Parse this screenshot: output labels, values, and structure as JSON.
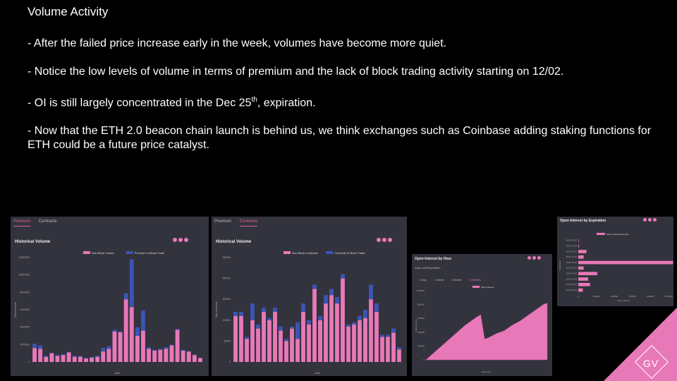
{
  "slide": {
    "title": "Volume Activity",
    "bullets": [
      "- After the failed price increase early in the week, volumes have become more quiet.",
      "- Notice the low levels of volume in terms of premium and the lack of block trading activity starting on 12/02.",
      "- OI is still largely concentrated in the Dec 25",
      "th",
      ", expiration.",
      "- Now that the ETH 2.0 beacon chain launch is behind us, we think exchanges such as Coinbase adding staking functions for ETH could be a future price catalyst."
    ],
    "logo": "GV"
  },
  "colors": {
    "pink": "#e879b8",
    "blue": "#3b55b6",
    "panel": "#33333d"
  },
  "chart_data": [
    {
      "type": "bar",
      "tabs": [
        "Premium",
        "Contracts"
      ],
      "active_tab": "Premium",
      "title": "Historical Volume",
      "xlabel": "Date",
      "ylabel": "Total Premium",
      "legend": [
        "Non-Block Trades",
        "Premium in Block Trade"
      ],
      "ylim": [
        0,
        12000000
      ],
      "yticks": [
        "0",
        "2000000",
        "4000000",
        "6000000",
        "8000000",
        "10000000",
        "12000000"
      ],
      "series": [
        {
          "name": "Non-Block Trades",
          "values": [
            1600000,
            1500000,
            600000,
            1000000,
            700000,
            800000,
            1100000,
            600000,
            600000,
            400000,
            500000,
            600000,
            1200000,
            1500000,
            3500000,
            3400000,
            7200000,
            6300000,
            3000000,
            3600000,
            1500000,
            1300000,
            1400000,
            1500000,
            1900000,
            3700000,
            1300000,
            1200000,
            800000,
            450000
          ]
        },
        {
          "name": "Premium in Block Trade",
          "values": [
            500000,
            400000,
            100000,
            50000,
            100000,
            100000,
            50000,
            100000,
            100000,
            50000,
            100000,
            100000,
            400000,
            300000,
            200000,
            100000,
            700000,
            5500000,
            1000000,
            2300000,
            200000,
            100000,
            100000,
            200000,
            100000,
            100000,
            100000,
            50000,
            50000,
            50000
          ]
        }
      ]
    },
    {
      "type": "bar",
      "tabs": [
        "Premium",
        "Contracts"
      ],
      "active_tab": "Contracts",
      "title": "Historical Volume",
      "xlabel": "Date",
      "ylabel": "Total Contracts",
      "legend": [
        "Non-Block Contracts",
        "Contracts in Block Trade"
      ],
      "ylim": [
        0,
        250000
      ],
      "yticks": [
        "0",
        "50000",
        "100000",
        "150000",
        "200000",
        "250000"
      ],
      "series": [
        {
          "name": "Non-Block Contracts",
          "values": [
            110000,
            110000,
            55000,
            100000,
            80000,
            120000,
            100000,
            120000,
            75000,
            50000,
            80000,
            55000,
            120000,
            90000,
            175000,
            100000,
            140000,
            160000,
            140000,
            200000,
            85000,
            90000,
            100000,
            105000,
            150000,
            120000,
            60000,
            60000,
            70000,
            30000
          ]
        },
        {
          "name": "Contracts in Block Trade",
          "values": [
            10000,
            10000,
            5000,
            40000,
            10000,
            10000,
            5000,
            10000,
            10000,
            5000,
            5000,
            40000,
            20000,
            10000,
            10000,
            10000,
            20000,
            15000,
            15000,
            10000,
            5000,
            5000,
            10000,
            20000,
            35000,
            20000,
            5000,
            5000,
            10000,
            5000
          ]
        }
      ]
    },
    {
      "type": "area",
      "title": "Open Interest by Hour",
      "subtitle": "Days until Expiration",
      "tabs": [
        "1 Day",
        "1 Week",
        "1 Month",
        "3 Months"
      ],
      "active_tab": "3 Months",
      "legend": [
        "Open Interest"
      ],
      "xlabel": "Date Time",
      "ylabel": "Open Interest",
      "ylim": [
        0,
        1000000
      ],
      "yticks": [
        "0",
        "200000",
        "400000",
        "600000",
        "800000",
        "1000000"
      ],
      "values": [
        0,
        50000,
        100000,
        150000,
        200000,
        250000,
        300000,
        350000,
        400000,
        450000,
        500000,
        540000,
        580000,
        620000,
        650000,
        300000,
        320000,
        350000,
        380000,
        400000,
        420000,
        460000,
        500000,
        530000,
        560000,
        600000,
        640000,
        680000,
        720000,
        760000,
        800000,
        820000
      ]
    },
    {
      "type": "bar",
      "orientation": "horizontal",
      "title": "Open Interest by Expiration",
      "legend": [
        "Open Interest By Expiry"
      ],
      "xlabel": "Open Interest",
      "ylabel": "Expiration",
      "categories": [
        "2020-12-07",
        "2020-12-08",
        "2020-12-11",
        "2020-12-18",
        "2020-12-25",
        "2021-01-29",
        "2021-02-26",
        "2021-03-26",
        "2021-06-25",
        "2021-09-24"
      ],
      "values": [
        5000,
        8000,
        90000,
        60000,
        1050000,
        60000,
        210000,
        110000,
        130000,
        50000
      ],
      "xlim": [
        0,
        1000000
      ],
      "xticks": [
        "0",
        "200000",
        "400000",
        "600000",
        "800000",
        "1000000"
      ]
    }
  ]
}
